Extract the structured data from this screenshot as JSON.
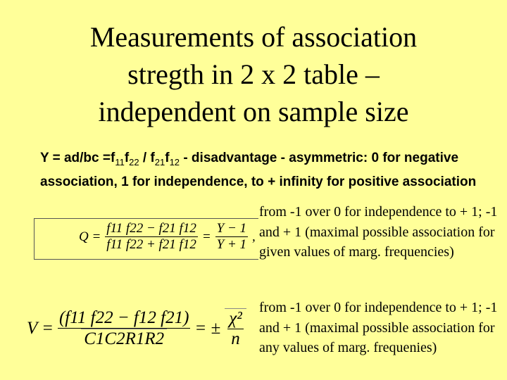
{
  "title": [
    "Measurements of association",
    "stregth in 2 x 2 table –",
    "independent on sample size"
  ],
  "intro": {
    "y_def": "Y = ad/bc =f",
    "s11": "11",
    "f22": "f",
    "s22": "22",
    "slash": " / f",
    "s21": "21",
    "f12": "f",
    "s12": "12",
    "rest": " - disadvantage - asymmetric:  0 for negative association, 1 for independence, to + infinity for positive association"
  },
  "q_formula": {
    "lhs": "Q =",
    "num": "f11 f22 − f21 f12",
    "den": "f11 f22 + f21 f12",
    "eq": "=",
    "num2": "Y − 1",
    "den2": "Y + 1",
    "comma": ","
  },
  "q_description": "from -1 over 0 for independence to + 1; -1 and + 1  (maximal possible association for given values of marg. frequencies)",
  "v_formula": {
    "lhs": "V =",
    "num": "(f11 f22 − f12 f21)",
    "den": "C1C2R1R2",
    "eq": "= ±",
    "num2": "χ²",
    "den2": "n"
  },
  "v_description": "from -1 over 0 for independence to + 1; -1 and + 1  (maximal possible association for any values of marg. frequenies)"
}
